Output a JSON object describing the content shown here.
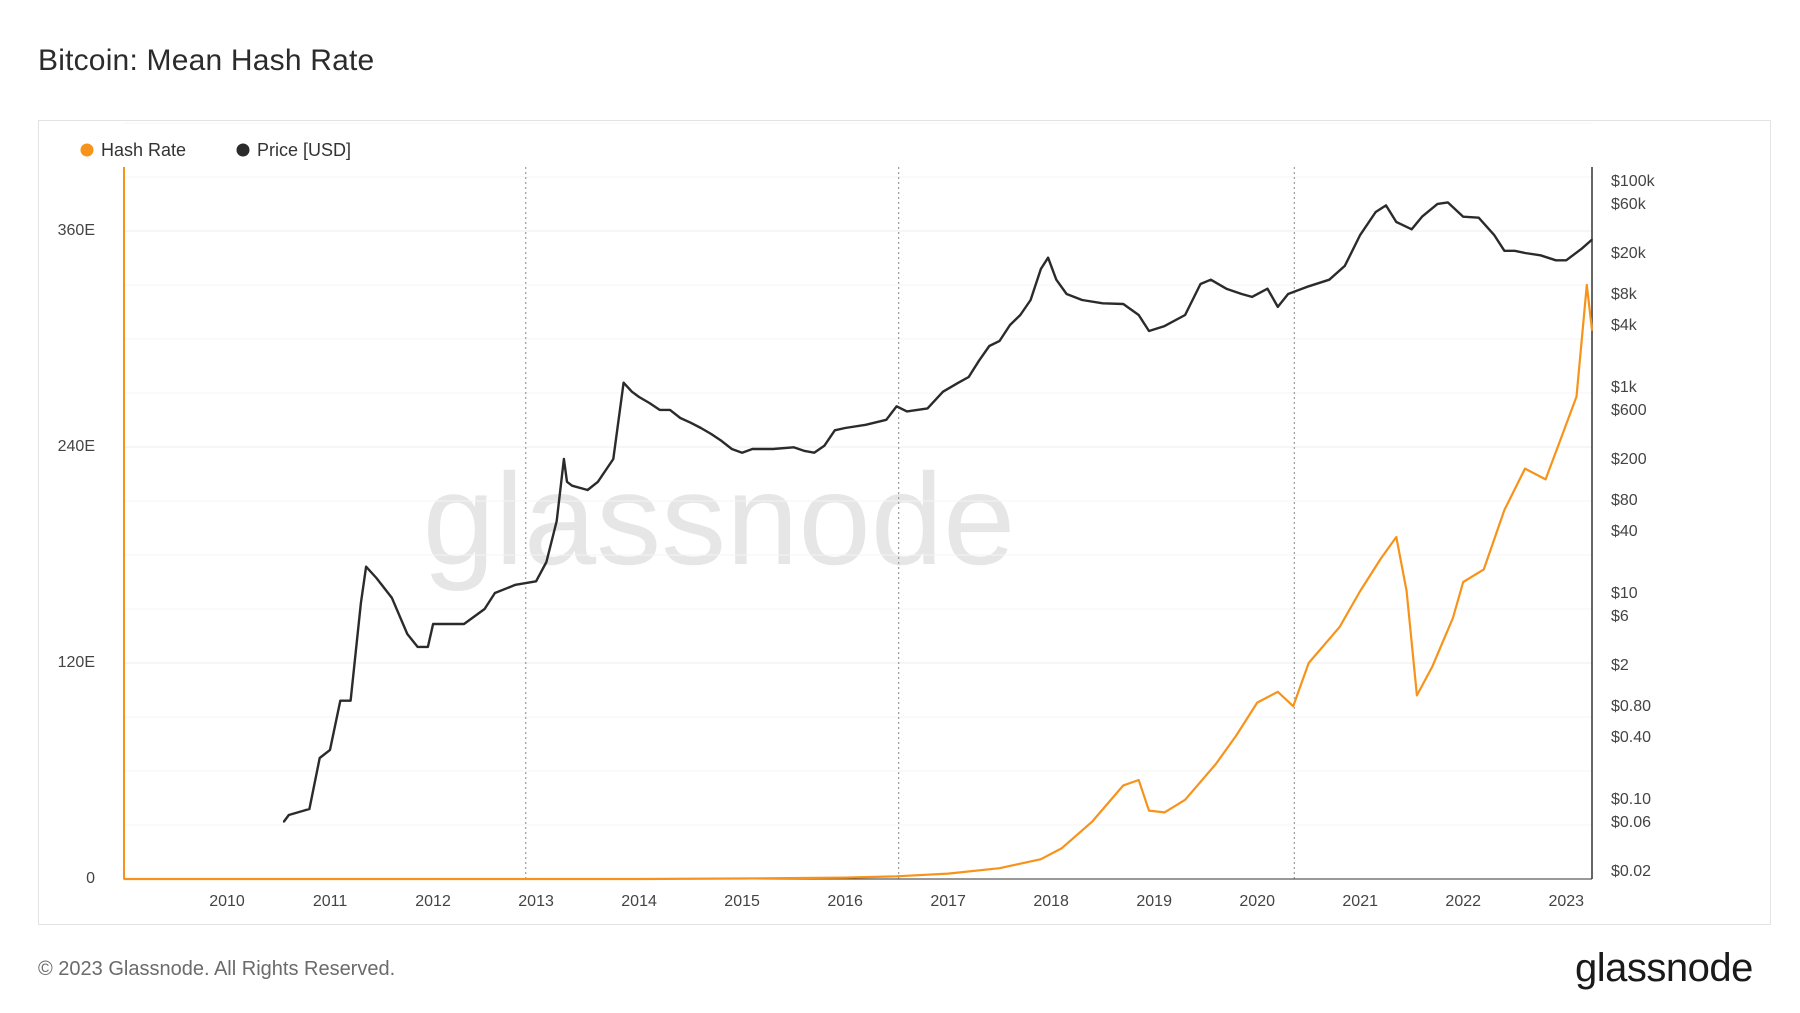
{
  "title": "Bitcoin: Mean Hash Rate",
  "footer": {
    "copyright": "© 2023 Glassnode. All Rights Reserved.",
    "logo": "glassnode"
  },
  "watermark": "glassnode",
  "colors": {
    "hash_rate": "#f7931a",
    "price": "#2b2b2b",
    "grid": "#ececec",
    "vline": "#888888",
    "axis": "#333333"
  },
  "chart_data": {
    "type": "line",
    "title": "Bitcoin: Mean Hash Rate",
    "legend_placement": "top-left",
    "grid": true,
    "x_ticks": [
      "2010",
      "2011",
      "2012",
      "2013",
      "2014",
      "2015",
      "2016",
      "2017",
      "2018",
      "2019",
      "2020",
      "2021",
      "2022",
      "2023"
    ],
    "x_range": [
      2009.0,
      2023.25
    ],
    "halving_markers": [
      2012.9,
      2016.52,
      2020.36
    ],
    "y_left": {
      "label": "",
      "ticks": [
        "0",
        "120E",
        "240E",
        "360E"
      ],
      "tick_values": [
        0,
        120,
        240,
        360
      ],
      "range": [
        0,
        360
      ],
      "unit": "E"
    },
    "y_right": {
      "label": "",
      "scale": "log",
      "ticks": [
        "$100k",
        "$60k",
        "$20k",
        "$8k",
        "$4k",
        "$1k",
        "$600",
        "$200",
        "$80",
        "$40",
        "$10",
        "$6",
        "$2",
        "$0.80",
        "$0.40",
        "$0.10",
        "$0.06",
        "$0.02"
      ],
      "tick_values": [
        100000,
        60000,
        20000,
        8000,
        4000,
        1000,
        600,
        200,
        80,
        40,
        10,
        6,
        2,
        0.8,
        0.4,
        0.1,
        0.06,
        0.02
      ],
      "range": [
        0.02,
        100000
      ]
    },
    "series": [
      {
        "name": "Hash Rate",
        "axis": "left",
        "color": "#f7931a",
        "x": [
          2009.0,
          2010.0,
          2011.0,
          2012.0,
          2013.0,
          2014.0,
          2015.0,
          2016.0,
          2016.5,
          2017.0,
          2017.5,
          2017.9,
          2018.1,
          2018.4,
          2018.7,
          2018.85,
          2018.95,
          2019.1,
          2019.3,
          2019.6,
          2019.8,
          2020.0,
          2020.2,
          2020.35,
          2020.5,
          2020.8,
          2021.0,
          2021.2,
          2021.35,
          2021.45,
          2021.55,
          2021.7,
          2021.9,
          2022.0,
          2022.2,
          2022.4,
          2022.6,
          2022.8,
          2022.95,
          2023.1,
          2023.2,
          2023.25
        ],
        "y": [
          0,
          0,
          0,
          0,
          0,
          0,
          0.3,
          0.8,
          1.5,
          3,
          6,
          11,
          17,
          32,
          52,
          55,
          38,
          37,
          44,
          64,
          80,
          98,
          104,
          96,
          120,
          140,
          160,
          178,
          190,
          160,
          102,
          118,
          145,
          165,
          172,
          205,
          228,
          222,
          245,
          268,
          330,
          305
        ]
      },
      {
        "name": "Price [USD]",
        "axis": "right",
        "color": "#2b2b2b",
        "x": [
          2010.55,
          2010.6,
          2010.8,
          2010.9,
          2011.0,
          2011.1,
          2011.2,
          2011.3,
          2011.35,
          2011.45,
          2011.6,
          2011.75,
          2011.85,
          2011.95,
          2012.0,
          2012.1,
          2012.3,
          2012.5,
          2012.6,
          2012.8,
          2013.0,
          2013.1,
          2013.2,
          2013.27,
          2013.3,
          2013.35,
          2013.5,
          2013.6,
          2013.75,
          2013.85,
          2013.93,
          2014.0,
          2014.1,
          2014.2,
          2014.3,
          2014.4,
          2014.5,
          2014.6,
          2014.7,
          2014.8,
          2014.9,
          2015.0,
          2015.1,
          2015.3,
          2015.5,
          2015.6,
          2015.7,
          2015.8,
          2015.9,
          2016.0,
          2016.2,
          2016.4,
          2016.5,
          2016.6,
          2016.8,
          2016.95,
          2017.1,
          2017.2,
          2017.3,
          2017.4,
          2017.5,
          2017.6,
          2017.7,
          2017.8,
          2017.9,
          2017.97,
          2018.05,
          2018.15,
          2018.3,
          2018.5,
          2018.7,
          2018.85,
          2018.95,
          2019.1,
          2019.3,
          2019.45,
          2019.55,
          2019.7,
          2019.85,
          2019.95,
          2020.1,
          2020.2,
          2020.3,
          2020.5,
          2020.7,
          2020.85,
          2021.0,
          2021.15,
          2021.25,
          2021.35,
          2021.5,
          2021.6,
          2021.75,
          2021.85,
          2022.0,
          2022.15,
          2022.3,
          2022.4,
          2022.5,
          2022.6,
          2022.75,
          2022.9,
          2023.0,
          2023.15,
          2023.25
        ],
        "y": [
          0.06,
          0.07,
          0.08,
          0.25,
          0.3,
          0.9,
          0.9,
          8,
          18,
          14,
          9,
          4,
          3,
          3,
          5,
          5,
          5,
          7,
          10,
          12,
          13,
          20,
          50,
          200,
          120,
          110,
          100,
          120,
          200,
          1100,
          900,
          800,
          700,
          600,
          600,
          500,
          450,
          400,
          350,
          300,
          250,
          230,
          250,
          250,
          260,
          240,
          230,
          270,
          380,
          400,
          430,
          480,
          650,
          580,
          620,
          900,
          1100,
          1250,
          1800,
          2500,
          2800,
          4000,
          5000,
          7000,
          14000,
          18000,
          11000,
          8000,
          7000,
          6500,
          6400,
          5000,
          3500,
          3900,
          5000,
          10000,
          11000,
          9000,
          8000,
          7500,
          9000,
          6000,
          8000,
          9500,
          11000,
          15000,
          30000,
          50000,
          58000,
          40000,
          34000,
          45000,
          60000,
          62000,
          45000,
          44000,
          30000,
          21000,
          21000,
          20000,
          19000,
          17000,
          17000,
          22000,
          27000
        ]
      }
    ]
  }
}
